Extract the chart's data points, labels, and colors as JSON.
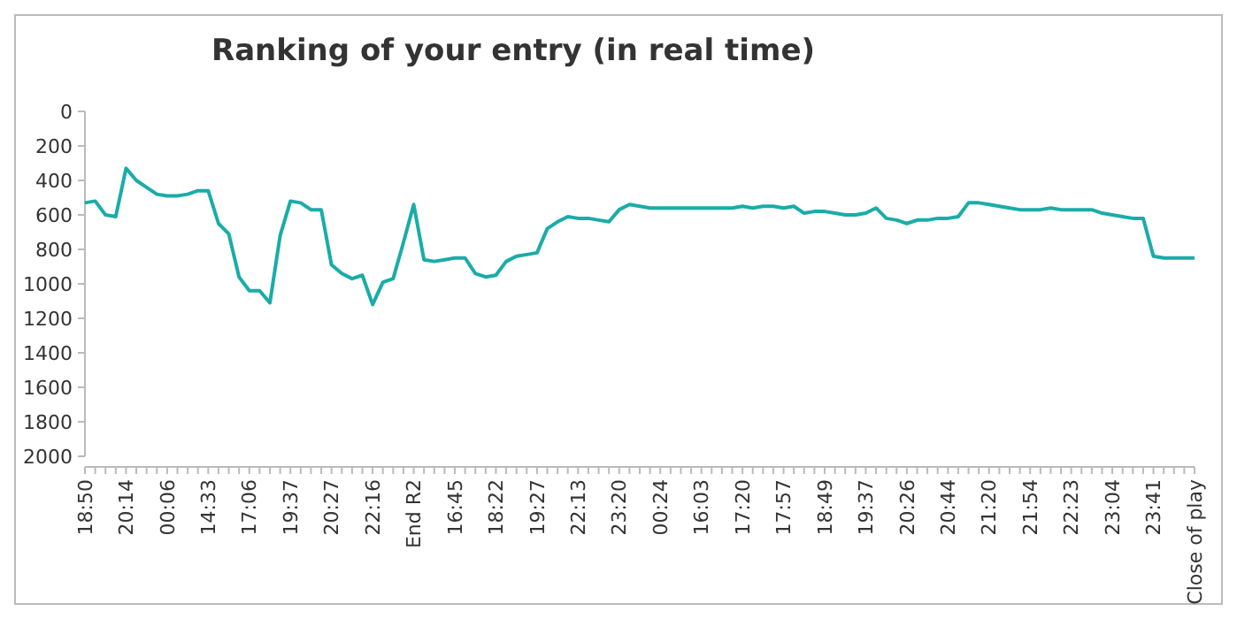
{
  "chart_data": {
    "type": "line",
    "title": "Ranking of your entry (in real time)",
    "categories": [
      "18:50",
      null,
      null,
      null,
      "20:14",
      null,
      null,
      null,
      "00:06",
      null,
      null,
      null,
      "14:33",
      null,
      null,
      null,
      "17:06",
      null,
      null,
      null,
      "19:37",
      null,
      null,
      null,
      "20:27",
      null,
      null,
      null,
      "22:16",
      null,
      null,
      null,
      "End R2",
      null,
      null,
      null,
      "16:45",
      null,
      null,
      null,
      "18:22",
      null,
      null,
      null,
      "19:27",
      null,
      null,
      null,
      "22:13",
      null,
      null,
      null,
      "23:20",
      null,
      null,
      null,
      "00:24",
      null,
      null,
      null,
      "16:03",
      null,
      null,
      null,
      "17:20",
      null,
      null,
      null,
      "17:57",
      null,
      null,
      null,
      "18:49",
      null,
      null,
      null,
      "19:37",
      null,
      null,
      null,
      "20:26",
      null,
      null,
      null,
      "20:44",
      null,
      null,
      null,
      "21:20",
      null,
      null,
      null,
      "21:54",
      null,
      null,
      null,
      "22:23",
      null,
      null,
      null,
      "23:04",
      null,
      null,
      null,
      "23:41",
      null,
      null,
      null,
      "Close of play"
    ],
    "series": [
      {
        "color": "#1aaca8",
        "values": [
          530,
          520,
          600,
          610,
          330,
          400,
          440,
          480,
          490,
          490,
          480,
          460,
          460,
          650,
          710,
          960,
          1040,
          1040,
          1110,
          720,
          520,
          530,
          570,
          570,
          890,
          940,
          970,
          950,
          1120,
          990,
          970,
          760,
          540,
          860,
          870,
          860,
          850,
          850,
          940,
          960,
          950,
          870,
          840,
          830,
          820,
          680,
          640,
          610,
          620,
          620,
          630,
          640,
          570,
          540,
          550,
          560,
          560,
          560,
          560,
          560,
          560,
          560,
          560,
          560,
          550,
          560,
          550,
          550,
          560,
          550,
          590,
          580,
          580,
          590,
          600,
          600,
          590,
          560,
          620,
          630,
          650,
          630,
          630,
          620,
          620,
          610,
          530,
          530,
          540,
          550,
          560,
          570,
          570,
          570,
          560,
          570,
          570,
          570,
          570,
          590,
          600,
          610,
          620,
          620,
          840,
          850,
          850,
          850,
          850
        ]
      }
    ],
    "ylim": [
      2000,
      0
    ],
    "yticks": [
      0,
      200,
      400,
      600,
      800,
      1000,
      1200,
      1400,
      1600,
      1800,
      2000
    ],
    "grid": false,
    "marker": "none",
    "line_style": "solid"
  }
}
